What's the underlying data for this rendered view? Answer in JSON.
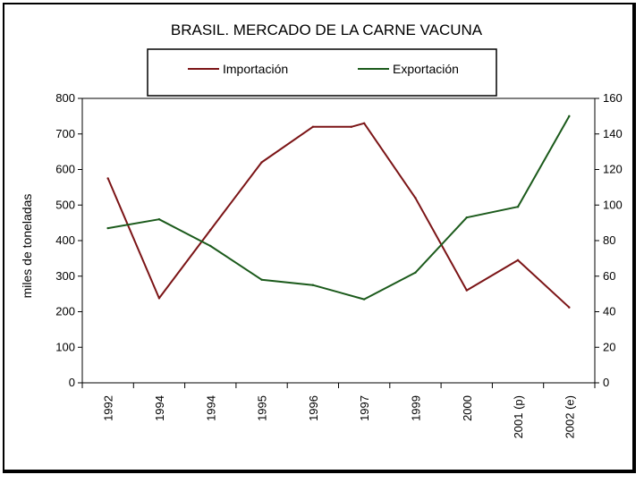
{
  "chart_data": {
    "type": "line",
    "title": "BRASIL. MERCADO DE LA  CARNE VACUNA",
    "xlabel": "",
    "ylabel": "miles de toneladas",
    "ylabel_right": "",
    "categories": [
      "1992",
      "1994",
      "1994",
      "1995",
      "1996",
      "1997",
      "1999",
      "2000",
      "2001 (p)",
      "2002 (e)"
    ],
    "ylim": [
      0,
      800
    ],
    "yticks": [
      0,
      100,
      200,
      300,
      400,
      500,
      600,
      700,
      800
    ],
    "ylim_right": [
      0,
      160
    ],
    "yticks_right": [
      0,
      20,
      40,
      60,
      80,
      100,
      120,
      140,
      160
    ],
    "grid": false,
    "legend_position": "top",
    "series": [
      {
        "name": "Importación",
        "axis": "left",
        "color": "#7b1416",
        "points": [
          {
            "x": 0,
            "y": 575
          },
          {
            "x": 1,
            "y": 238
          },
          {
            "x": 2,
            "y": 430
          },
          {
            "x": 3,
            "y": 620
          },
          {
            "x": 4,
            "y": 720
          },
          {
            "x": 4.75,
            "y": 720
          },
          {
            "x": 5,
            "y": 730
          },
          {
            "x": 6,
            "y": 520
          },
          {
            "x": 7,
            "y": 260
          },
          {
            "x": 8,
            "y": 345
          },
          {
            "x": 9,
            "y": 212
          }
        ]
      },
      {
        "name": "Exportación",
        "axis": "right",
        "color": "#1b5a1b",
        "points": [
          {
            "x": 0,
            "y": 87
          },
          {
            "x": 1,
            "y": 92
          },
          {
            "x": 2,
            "y": 77
          },
          {
            "x": 3,
            "y": 58
          },
          {
            "x": 4,
            "y": 55
          },
          {
            "x": 5,
            "y": 47
          },
          {
            "x": 6,
            "y": 62
          },
          {
            "x": 7,
            "y": 93
          },
          {
            "x": 8,
            "y": 99
          },
          {
            "x": 9,
            "y": 150
          }
        ]
      }
    ]
  }
}
